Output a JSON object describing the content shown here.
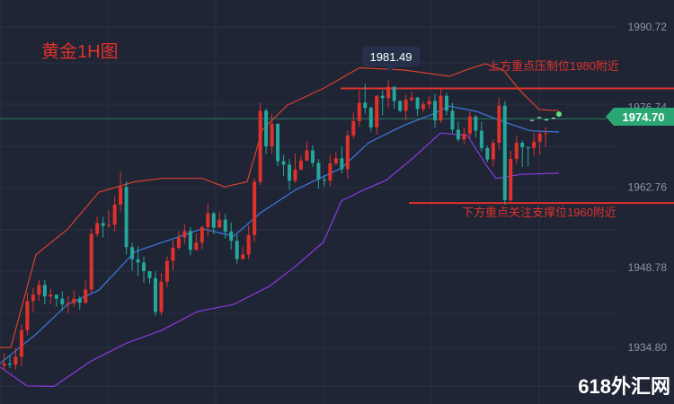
{
  "chart_data": {
    "type": "candlestick",
    "title": "黄金1H图",
    "y_ticks": [
      "1990.72",
      "1976.74",
      "1962.76",
      "1948.78",
      "1934.80"
    ],
    "ylim": [
      1928,
      1996
    ],
    "last_price": "1974.70",
    "high_callout": "1981.49",
    "resistance": {
      "label": "上方重点压制位1980附近",
      "value": 1980
    },
    "support": {
      "label": "下方重点关注支撑位1960附近",
      "value": 1960
    },
    "watermark": "618外汇网",
    "colors": {
      "up": "#e0312b",
      "down": "#26a69a",
      "upper_band": "#d8402e",
      "middle_band": "#3f78e0",
      "lower_band": "#8a3be0",
      "level_line": "#e0312b",
      "price_badge": "#2aa772",
      "background": "#1f2535",
      "grid": "#2a3142"
    },
    "candles": [
      [
        1931.6,
        1932.0,
        1933.8,
        1930.9
      ],
      [
        1932.0,
        1931.8,
        1933.3,
        1931.2
      ],
      [
        1931.8,
        1933.2,
        1934.7,
        1930.9
      ],
      [
        1933.2,
        1937.8,
        1938.8,
        1931.5
      ],
      [
        1937.8,
        1942.9,
        1944.4,
        1936.9
      ],
      [
        1942.9,
        1944.0,
        1945.2,
        1941.0
      ],
      [
        1944.0,
        1945.7,
        1946.6,
        1942.9
      ],
      [
        1945.7,
        1943.7,
        1946.6,
        1942.3
      ],
      [
        1943.7,
        1944.0,
        1945.0,
        1942.4
      ],
      [
        1944.0,
        1943.3,
        1944.0,
        1941.9
      ],
      [
        1943.3,
        1942.3,
        1944.6,
        1941.2
      ],
      [
        1942.3,
        1942.5,
        1943.8,
        1940.7
      ],
      [
        1942.5,
        1943.3,
        1944.8,
        1941.8
      ],
      [
        1943.3,
        1942.6,
        1943.8,
        1941.4
      ],
      [
        1942.6,
        1944.9,
        1946.5,
        1942.4
      ],
      [
        1944.9,
        1954.6,
        1955.5,
        1944.3
      ],
      [
        1954.6,
        1956.5,
        1957.6,
        1954.1
      ],
      [
        1956.5,
        1956.0,
        1957.6,
        1954.0
      ],
      [
        1956.0,
        1956.2,
        1958.7,
        1955.7
      ],
      [
        1956.2,
        1959.7,
        1961.1,
        1955.0
      ],
      [
        1959.7,
        1962.8,
        1965.5,
        1958.4
      ],
      [
        1962.8,
        1952.3,
        1963.8,
        1951.0
      ],
      [
        1952.3,
        1950.2,
        1953.1,
        1948.2
      ],
      [
        1950.2,
        1949.6,
        1952.4,
        1947.3
      ],
      [
        1949.6,
        1948.1,
        1950.7,
        1946.1
      ],
      [
        1948.1,
        1946.9,
        1947.9,
        1945.9
      ],
      [
        1946.9,
        1941.0,
        1948.1,
        1940.3
      ],
      [
        1941.0,
        1946.3,
        1947.8,
        1940.4
      ],
      [
        1946.3,
        1949.9,
        1950.7,
        1945.3
      ],
      [
        1949.9,
        1952.2,
        1953.6,
        1948.3
      ],
      [
        1952.2,
        1954.0,
        1955.1,
        1951.8
      ],
      [
        1954.0,
        1955.1,
        1956.3,
        1952.9
      ],
      [
        1955.1,
        1951.8,
        1955.8,
        1950.9
      ],
      [
        1951.8,
        1953.1,
        1954.7,
        1952.0
      ],
      [
        1953.1,
        1955.8,
        1956.0,
        1951.9
      ],
      [
        1955.8,
        1958.2,
        1960.0,
        1954.2
      ],
      [
        1958.2,
        1955.7,
        1958.5,
        1954.6
      ],
      [
        1955.7,
        1957.1,
        1958.5,
        1956.0
      ],
      [
        1957.1,
        1955.0,
        1958.1,
        1953.8
      ],
      [
        1955.0,
        1953.4,
        1956.6,
        1951.9
      ],
      [
        1953.4,
        1950.2,
        1954.5,
        1949.4
      ],
      [
        1950.2,
        1951.0,
        1952.4,
        1950.2
      ],
      [
        1951.0,
        1954.4,
        1956.1,
        1950.2
      ],
      [
        1954.4,
        1963.7,
        1964.3,
        1953.2
      ],
      [
        1963.7,
        1976.1,
        1977.5,
        1963.1
      ],
      [
        1976.1,
        1969.9,
        1976.5,
        1968.6
      ],
      [
        1969.9,
        1973.8,
        1975.6,
        1968.6
      ],
      [
        1973.8,
        1967.3,
        1974.0,
        1966.4
      ],
      [
        1967.3,
        1966.7,
        1968.4,
        1964.7
      ],
      [
        1966.7,
        1963.9,
        1967.7,
        1962.3
      ],
      [
        1963.9,
        1965.8,
        1968.6,
        1963.5
      ],
      [
        1965.8,
        1967.4,
        1968.3,
        1966.7
      ],
      [
        1967.4,
        1969.2,
        1970.8,
        1967.3
      ],
      [
        1969.2,
        1967.0,
        1970.1,
        1966.3
      ],
      [
        1967.0,
        1964.1,
        1967.7,
        1962.5
      ],
      [
        1964.1,
        1963.9,
        1964.9,
        1962.9
      ],
      [
        1963.9,
        1966.9,
        1968.4,
        1963.0
      ],
      [
        1966.9,
        1967.8,
        1968.9,
        1966.6
      ],
      [
        1967.8,
        1965.9,
        1969.8,
        1965.2
      ],
      [
        1965.9,
        1971.8,
        1972.6,
        1964.2
      ],
      [
        1971.8,
        1974.3,
        1975.8,
        1971.2
      ],
      [
        1974.3,
        1977.5,
        1979.7,
        1973.3
      ],
      [
        1977.5,
        1976.6,
        1980.8,
        1975.6
      ],
      [
        1976.6,
        1973.2,
        1976.9,
        1972.5
      ],
      [
        1973.2,
        1978.7,
        1978.8,
        1971.9
      ],
      [
        1978.7,
        1978.3,
        1979.7,
        1975.3
      ],
      [
        1978.3,
        1980.3,
        1981.5,
        1976.6
      ],
      [
        1980.3,
        1977.8,
        1980.2,
        1976.5
      ],
      [
        1977.8,
        1976.1,
        1977.9,
        1975.8
      ],
      [
        1976.1,
        1978.0,
        1978.9,
        1974.4
      ],
      [
        1978.0,
        1978.4,
        1979.4,
        1977.7
      ],
      [
        1978.4,
        1976.4,
        1978.5,
        1975.2
      ],
      [
        1976.4,
        1977.2,
        1977.8,
        1975.9
      ],
      [
        1977.2,
        1977.8,
        1978.6,
        1976.5
      ],
      [
        1977.8,
        1974.4,
        1979.0,
        1973.1
      ],
      [
        1974.4,
        1978.7,
        1979.9,
        1974.0
      ],
      [
        1978.7,
        1976.1,
        1979.2,
        1975.3
      ],
      [
        1976.1,
        1972.8,
        1977.5,
        1972.2
      ],
      [
        1972.8,
        1971.1,
        1974.2,
        1970.7
      ],
      [
        1971.1,
        1972.1,
        1973.2,
        1970.2
      ],
      [
        1972.1,
        1975.1,
        1976.0,
        1971.3
      ],
      [
        1975.1,
        1972.6,
        1975.3,
        1971.4
      ],
      [
        1972.6,
        1969.6,
        1974.2,
        1969.0
      ],
      [
        1969.6,
        1967.6,
        1970.0,
        1967.1
      ],
      [
        1967.6,
        1970.5,
        1971.1,
        1966.4
      ],
      [
        1970.5,
        1977.0,
        1978.4,
        1969.3
      ],
      [
        1977.0,
        1960.5,
        1977.8,
        1959.7
      ],
      [
        1960.5,
        1967.7,
        1969.1,
        1960.1
      ],
      [
        1967.7,
        1970.5,
        1971.8,
        1966.8
      ],
      [
        1970.5,
        1969.7,
        1970.9,
        1966.3
      ],
      [
        1969.7,
        1969.6,
        1969.9,
        1966.4
      ],
      [
        1969.6,
        1970.7,
        1972.2,
        1968.3
      ],
      [
        1970.7,
        1972.1,
        1972.6,
        1968.4
      ],
      [
        1972.1,
        1972.2,
        1973.2,
        1969.8
      ]
    ],
    "upper_band": [
      [
        0,
        1934.8
      ],
      [
        12,
        1934.8
      ],
      [
        40,
        1951.0
      ],
      [
        75,
        1955.4
      ],
      [
        110,
        1961.9
      ],
      [
        150,
        1963.7
      ],
      [
        180,
        1964.3
      ],
      [
        225,
        1964.3
      ],
      [
        250,
        1962.8
      ],
      [
        275,
        1963.7
      ],
      [
        292,
        1972.8
      ],
      [
        320,
        1977.1
      ],
      [
        360,
        1980.0
      ],
      [
        400,
        1983.6
      ],
      [
        450,
        1983.2
      ],
      [
        500,
        1982.1
      ],
      [
        520,
        1983.3
      ],
      [
        540,
        1984.3
      ],
      [
        560,
        1983.2
      ],
      [
        580,
        1979.4
      ],
      [
        600,
        1976.3
      ],
      [
        622,
        1976.1
      ]
    ],
    "middle_band": [
      [
        0,
        1932.0
      ],
      [
        40,
        1937.1
      ],
      [
        75,
        1942.3
      ],
      [
        110,
        1944.8
      ],
      [
        150,
        1951.5
      ],
      [
        180,
        1953.1
      ],
      [
        225,
        1955.5
      ],
      [
        260,
        1954.2
      ],
      [
        290,
        1958.3
      ],
      [
        330,
        1962.4
      ],
      [
        380,
        1966.1
      ],
      [
        410,
        1970.5
      ],
      [
        450,
        1973.6
      ],
      [
        480,
        1975.4
      ],
      [
        500,
        1976.9
      ],
      [
        530,
        1976.0
      ],
      [
        560,
        1974.2
      ],
      [
        590,
        1972.6
      ],
      [
        622,
        1972.4
      ]
    ],
    "lower_band": [
      [
        0,
        1931.4
      ],
      [
        30,
        1928.1
      ],
      [
        60,
        1928.0
      ],
      [
        100,
        1932.3
      ],
      [
        140,
        1935.5
      ],
      [
        180,
        1937.8
      ],
      [
        220,
        1941.1
      ],
      [
        260,
        1942.3
      ],
      [
        300,
        1945.5
      ],
      [
        330,
        1949.1
      ],
      [
        360,
        1953.2
      ],
      [
        380,
        1960.4
      ],
      [
        405,
        1962.3
      ],
      [
        430,
        1964.0
      ],
      [
        460,
        1967.9
      ],
      [
        490,
        1972.2
      ],
      [
        520,
        1971.8
      ],
      [
        542,
        1966.4
      ],
      [
        552,
        1964.3
      ],
      [
        580,
        1965.0
      ],
      [
        622,
        1965.2
      ]
    ]
  }
}
